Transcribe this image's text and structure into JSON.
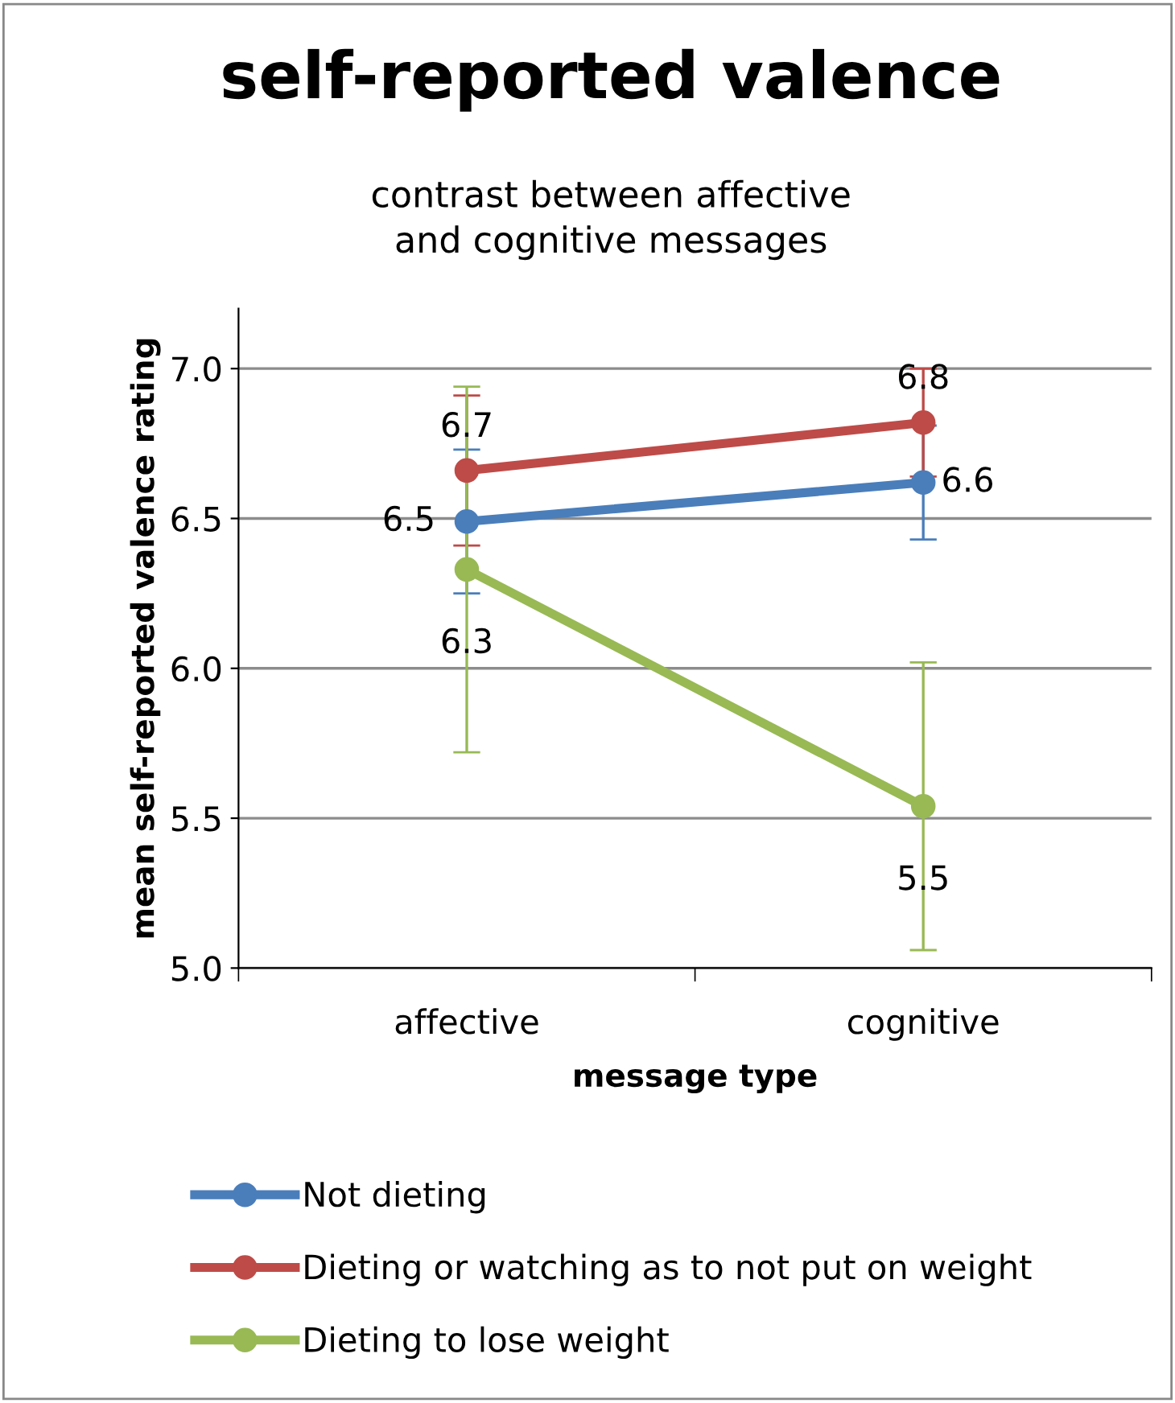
{
  "chart_data": {
    "type": "line",
    "title": "self-reported valence",
    "subtitle": "contrast between affective\nand cognitive messages",
    "xlabel": "message type",
    "ylabel": "mean self-reported valence rating",
    "categories": [
      "affective",
      "cognitive"
    ],
    "series": [
      {
        "name": "Not dieting",
        "color": "#4a7ebb",
        "values": [
          6.49,
          6.62
        ],
        "errors": [
          0.24,
          0.19
        ],
        "value_labels": [
          "6.5",
          "6.6"
        ]
      },
      {
        "name": "Dieting or watching as to not put on weight",
        "color": "#be4b48",
        "values": [
          6.66,
          6.82
        ],
        "errors": [
          0.25,
          0.18
        ],
        "value_labels": [
          "6.7",
          "6.8"
        ]
      },
      {
        "name": "Dieting to lose weight",
        "color": "#98b954",
        "values": [
          6.33,
          5.54
        ],
        "errors": [
          0.61,
          0.48
        ],
        "value_labels": [
          "6.3",
          "5.5"
        ]
      }
    ],
    "ylim": [
      5.0,
      7.2
    ],
    "yticks": [
      {
        "value": 5.0,
        "label": "5.0"
      },
      {
        "value": 5.5,
        "label": "5.5"
      },
      {
        "value": 6.0,
        "label": "6.0"
      },
      {
        "value": 6.5,
        "label": "6.5"
      },
      {
        "value": 7.0,
        "label": "7.0"
      }
    ],
    "grid": "y",
    "legend": "bottom",
    "marker": "circle",
    "line_style": "solid"
  }
}
